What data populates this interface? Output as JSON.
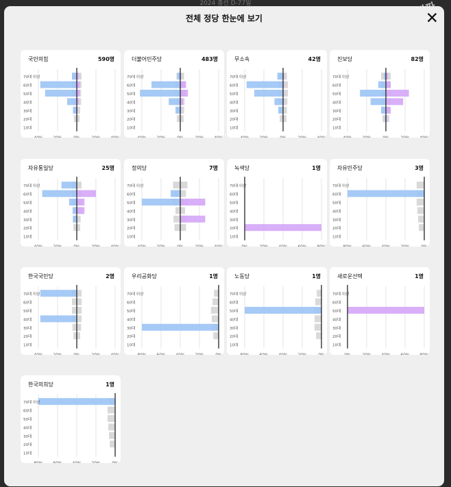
{
  "background_title": "2024 총선 D-77일",
  "watermark": "뉴스타파",
  "modal": {
    "title": "전체 정당 한눈에 보기",
    "close_icon": "close-icon"
  },
  "colors": {
    "male": "#9cc4f5",
    "female": "#d4a6f7",
    "total": "#d9d9d9",
    "grid": "#dddddd",
    "axis": "#333333"
  },
  "age_labels": [
    "70대 이상",
    "60대",
    "50대",
    "40대",
    "30대",
    "20대",
    "10대"
  ],
  "chart_data": [
    {
      "type": "bar",
      "party": "국민의힘",
      "count": "590명",
      "x_ticks": [
        "40%",
        "20%",
        "0%",
        "20%",
        "40%"
      ],
      "max": 40,
      "mirror": true,
      "male": [
        5,
        38,
        33,
        10,
        4,
        0,
        0
      ],
      "female": [
        2,
        3,
        3,
        2,
        1,
        0,
        0
      ],
      "total": [
        10,
        10,
        9,
        9,
        7,
        6,
        0
      ]
    },
    {
      "type": "bar",
      "party": "더불어민주당",
      "count": "483명",
      "x_ticks": [
        "40%",
        "20%",
        "0%",
        "20%",
        "40%"
      ],
      "max": 40,
      "mirror": true,
      "male": [
        3,
        30,
        42,
        12,
        5,
        0,
        0
      ],
      "female": [
        1,
        6,
        8,
        3,
        1,
        0,
        0
      ],
      "total": [
        8,
        10,
        10,
        9,
        8,
        7,
        0
      ]
    },
    {
      "type": "bar",
      "party": "무소속",
      "count": "42명",
      "x_ticks": [
        "40%",
        "20%",
        "0%",
        "20%",
        "40%"
      ],
      "max": 40,
      "mirror": true,
      "male": [
        6,
        38,
        30,
        9,
        5,
        0,
        0
      ],
      "female": [
        1,
        1,
        1,
        1,
        0,
        0,
        0
      ],
      "total": [
        8,
        10,
        10,
        9,
        8,
        7,
        0
      ]
    },
    {
      "type": "bar",
      "party": "진보당",
      "count": "82명",
      "x_ticks": [
        "40%",
        "20%",
        "0%",
        "20%",
        "40%"
      ],
      "max": 40,
      "mirror": true,
      "male": [
        2,
        8,
        27,
        16,
        5,
        1,
        0
      ],
      "female": [
        2,
        5,
        24,
        18,
        5,
        1,
        0
      ],
      "total": [
        10,
        10,
        10,
        9,
        8,
        7,
        0
      ]
    },
    {
      "type": "bar",
      "party": "자유통일당",
      "count": "25명",
      "x_ticks": [
        "40%",
        "20%",
        "0%",
        "20%",
        "40%"
      ],
      "max": 40,
      "mirror": true,
      "male": [
        16,
        36,
        8,
        4,
        4,
        0,
        0
      ],
      "female": [
        0,
        20,
        8,
        8,
        0,
        0,
        0
      ],
      "total": [
        10,
        10,
        9,
        9,
        8,
        7,
        0
      ]
    },
    {
      "type": "bar",
      "party": "정의당",
      "count": "7명",
      "x_ticks": [
        "40%",
        "20%",
        "0%",
        "20%",
        "40%"
      ],
      "max": 40,
      "mirror": true,
      "male": [
        0,
        10,
        40,
        0,
        0,
        0,
        0
      ],
      "female": [
        0,
        0,
        26,
        0,
        26,
        0,
        0
      ],
      "total": [
        15,
        12,
        16,
        10,
        14,
        12,
        0
      ]
    },
    {
      "type": "bar",
      "party": "녹색당",
      "count": "1명",
      "x_ticks": [
        "0%",
        "20%",
        "40%",
        "60%",
        "80%"
      ],
      "max": 100,
      "mirror": false,
      "male": [
        0,
        0,
        0,
        0,
        0,
        0,
        0
      ],
      "female": [
        0,
        0,
        0,
        0,
        0,
        100,
        0
      ],
      "total": [
        0,
        0,
        0,
        0,
        0,
        0,
        0
      ]
    },
    {
      "type": "bar",
      "party": "자유민주당",
      "count": "3명",
      "x_ticks": [
        "80%",
        "60%",
        "40%",
        "20%",
        "0%"
      ],
      "max": 100,
      "mirror": false,
      "reverse": true,
      "male": [
        0,
        100,
        0,
        0,
        0,
        0,
        0
      ],
      "female": [
        0,
        0,
        0,
        0,
        0,
        0,
        0
      ],
      "total": [
        10,
        10,
        10,
        9,
        8,
        7,
        0
      ]
    },
    {
      "type": "bar",
      "party": "한국국민당",
      "count": "2명",
      "x_ticks": [
        "40%",
        "20%",
        "0%",
        "20%",
        "40%"
      ],
      "max": 40,
      "mirror": true,
      "male": [
        38,
        0,
        0,
        38,
        0,
        0,
        0
      ],
      "female": [
        0,
        0,
        0,
        0,
        0,
        0,
        0
      ],
      "total": [
        10,
        10,
        10,
        10,
        9,
        7,
        0
      ]
    },
    {
      "type": "bar",
      "party": "우리공화당",
      "count": "1명",
      "x_ticks": [
        "80%",
        "60%",
        "40%",
        "20%",
        "0%"
      ],
      "max": 100,
      "mirror": false,
      "reverse": true,
      "male": [
        0,
        0,
        0,
        0,
        100,
        0,
        0
      ],
      "female": [
        0,
        0,
        0,
        0,
        0,
        0,
        0
      ],
      "total": [
        6,
        8,
        10,
        9,
        9,
        7,
        0
      ]
    },
    {
      "type": "bar",
      "party": "노동당",
      "count": "1명",
      "x_ticks": [
        "80%",
        "60%",
        "40%",
        "20%",
        "0%"
      ],
      "max": 100,
      "mirror": false,
      "reverse": true,
      "male": [
        0,
        0,
        100,
        0,
        0,
        0,
        0
      ],
      "female": [
        0,
        0,
        0,
        0,
        0,
        0,
        0
      ],
      "total": [
        6,
        8,
        10,
        9,
        9,
        7,
        0
      ]
    },
    {
      "type": "bar",
      "party": "새로운선택",
      "count": "1명",
      "x_ticks": [
        "0%",
        "20%",
        "40%",
        "60%",
        "80%"
      ],
      "max": 100,
      "mirror": false,
      "male": [
        0,
        0,
        0,
        0,
        0,
        0,
        0
      ],
      "female": [
        0,
        0,
        100,
        0,
        0,
        0,
        0
      ],
      "total": [
        0,
        0,
        0,
        0,
        0,
        0,
        0
      ]
    },
    {
      "type": "bar",
      "party": "한국의희당",
      "count": "1명",
      "x_ticks": [
        "80%",
        "60%",
        "40%",
        "20%",
        "0%"
      ],
      "max": 100,
      "mirror": false,
      "reverse": true,
      "male": [
        100,
        0,
        0,
        0,
        0,
        0,
        0
      ],
      "female": [
        0,
        0,
        0,
        0,
        0,
        0,
        0
      ],
      "total": [
        8,
        10,
        10,
        9,
        8,
        7,
        0
      ]
    }
  ]
}
